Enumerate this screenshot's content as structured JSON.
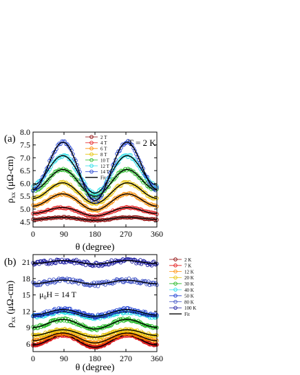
{
  "chart_data": [
    {
      "panel_label": "(a)",
      "type": "scatter",
      "annotation": "T = 2 K",
      "xlabel": "θ (degree)",
      "ylabel": "ρ",
      "ylabel_sub": "xx",
      "ylabel_unit": " (μΩ-cm)",
      "xlim": [
        0,
        360
      ],
      "ylim": [
        4.3,
        8.0
      ],
      "xticks": [
        0,
        90,
        180,
        270,
        360
      ],
      "yticks": [
        4.5,
        5.0,
        5.5,
        6.0,
        6.5,
        7.0,
        7.5,
        8.0
      ],
      "ytick_labels": [
        "4.5",
        "5.0",
        "5.5",
        "6.0",
        "6.5",
        "7.0",
        "7.5",
        "8.0"
      ],
      "grid": false,
      "legend_position": "top-center",
      "fit_label": "Fit",
      "series": [
        {
          "name": "2 T",
          "color": "#8b0000",
          "base": 4.58,
          "amp": 0.1,
          "amp2": 0.02
        },
        {
          "name": "4 T",
          "color": "#e31a1c",
          "base": 4.78,
          "amp": 0.28,
          "amp2": 0.05
        },
        {
          "name": "6 T",
          "color": "#ff8c00",
          "base": 5.04,
          "amp": 0.55,
          "amp2": 0.08
        },
        {
          "name": "8 T",
          "color": "#e6c200",
          "base": 5.32,
          "amp": 0.7,
          "amp2": 0.1
        },
        {
          "name": "10 T",
          "color": "#22b822",
          "base": 5.62,
          "amp": 0.92,
          "amp2": 0.12
        },
        {
          "name": "12 T",
          "color": "#22dde8",
          "base": 5.78,
          "amp": 1.3,
          "amp2": 0.16
        },
        {
          "name": "14 T",
          "color": "#1f3fd1",
          "base": 5.55,
          "amp": 2.05,
          "amp2": 0.22
        }
      ]
    },
    {
      "panel_label": "(b)",
      "type": "scatter",
      "annotation_main": "μ",
      "annotation_sub": "0",
      "annotation_tail": "H = 14 T",
      "xlabel": "θ (degree)",
      "ylabel": "ρ",
      "ylabel_sub": "xx",
      "ylabel_unit": " (μΩ-cm)",
      "xlim": [
        0,
        360
      ],
      "ylim": [
        4.6,
        22.4
      ],
      "xticks": [
        0,
        90,
        180,
        270,
        360
      ],
      "yticks": [
        6,
        9,
        12,
        15,
        18,
        21
      ],
      "ytick_labels": [
        "6",
        "9",
        "12",
        "15",
        "18",
        "21"
      ],
      "grid": false,
      "legend_position": "right",
      "fit_label": "Fit",
      "series": [
        {
          "name": "2 K",
          "color": "#8b0000",
          "base": 5.6,
          "amp": 2.2,
          "amp2": 0.2
        },
        {
          "name": "7 K",
          "color": "#e31a1c",
          "base": 5.6,
          "amp": 2.0,
          "amp2": 0.2
        },
        {
          "name": "12 K",
          "color": "#ff8c00",
          "base": 6.4,
          "amp": 1.6,
          "amp2": 0.2
        },
        {
          "name": "20 K",
          "color": "#e6c200",
          "base": 7.4,
          "amp": 1.2,
          "amp2": 0.15
        },
        {
          "name": "30 K",
          "color": "#22b822",
          "base": 8.9,
          "amp": 1.6,
          "amp2": 0.15
        },
        {
          "name": "40 K",
          "color": "#22dde8",
          "base": 10.9,
          "amp": 1.0,
          "amp2": 0.1
        },
        {
          "name": "50 K",
          "color": "#1f3fd1",
          "base": 11.2,
          "amp": 1.1,
          "amp2": 0.1
        },
        {
          "name": "80 K",
          "color": "#3b4fc4",
          "base": 17.0,
          "amp": 0.7,
          "amp2": 0.05
        },
        {
          "name": "100 K",
          "color": "#1a1aa0",
          "base": 20.7,
          "amp": 0.6,
          "amp2": 0.05
        }
      ]
    }
  ]
}
